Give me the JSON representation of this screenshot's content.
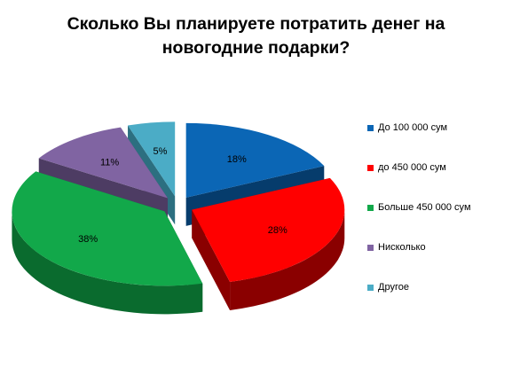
{
  "chart_data": {
    "type": "pie",
    "title": "Сколько  Вы планируете  потратить  денег на\nновогодние  подарки?",
    "categories": [
      "До  100 000 сум",
      "до 450 000 сум",
      "Больше  450 000 сум",
      "Нисколько",
      "Другое"
    ],
    "values": [
      18,
      28,
      38,
      11,
      5
    ],
    "data_labels": [
      "18%",
      "28%",
      "38%",
      "11%",
      "5%"
    ],
    "colors": [
      "#0B66B5",
      "#FF0000",
      "#12A84A",
      "#8064A2",
      "#4BACC6"
    ],
    "side_colors": [
      "#063C6C",
      "#8A0000",
      "#0A6B2E",
      "#4D3C63",
      "#2C6F80"
    ],
    "legend_position": "right",
    "style": "3d-exploded"
  }
}
